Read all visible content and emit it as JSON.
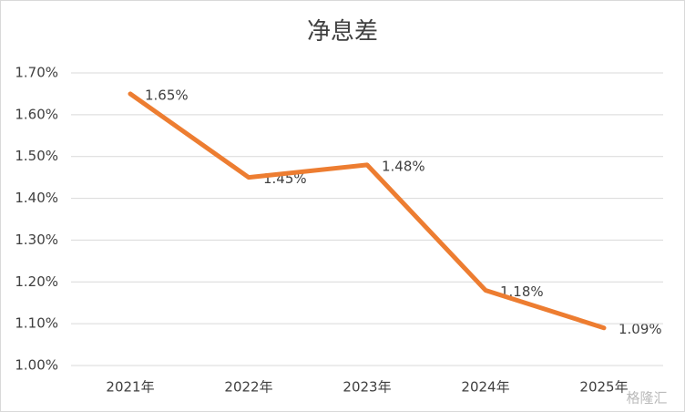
{
  "chart_data": {
    "type": "line",
    "title": "净息差",
    "categories": [
      "2021年",
      "2022年",
      "2023年",
      "2024年",
      "2025年"
    ],
    "series": [
      {
        "color": "#ed7d31",
        "values": [
          1.65,
          1.45,
          1.48,
          1.18,
          1.09
        ],
        "value_labels": [
          "1.65%",
          "1.45%",
          "1.48%",
          "1.18%",
          "1.09%"
        ]
      }
    ],
    "ylim": [
      1.0,
      1.7
    ],
    "yticks": [
      {
        "value": 1.0,
        "label": "1.00%"
      },
      {
        "value": 1.1,
        "label": "1.10%"
      },
      {
        "value": 1.2,
        "label": "1.20%"
      },
      {
        "value": 1.3,
        "label": "1.30%"
      },
      {
        "value": 1.4,
        "label": "1.40%"
      },
      {
        "value": 1.5,
        "label": "1.50%"
      },
      {
        "value": 1.6,
        "label": "1.60%"
      },
      {
        "value": 1.7,
        "label": "1.70%"
      }
    ],
    "grid": true,
    "watermark": "格隆汇"
  }
}
